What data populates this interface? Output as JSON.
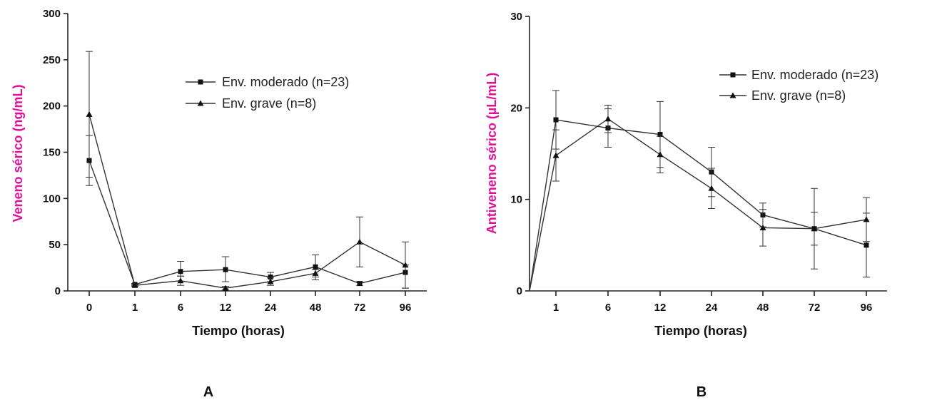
{
  "chart_data": [
    {
      "type": "line",
      "panel_label": "A",
      "xlabel": "Tiempo (horas)",
      "ylabel": "Veneno sérico (ng/mL)",
      "ylabel_color": "#e0109b",
      "categories": [
        "0",
        "1",
        "6",
        "12",
        "24",
        "48",
        "72",
        "96"
      ],
      "ylim": [
        0,
        300
      ],
      "yticks": [
        0,
        50,
        100,
        150,
        200,
        250,
        300
      ],
      "legend_position": "top-right",
      "grid": false,
      "series": [
        {
          "name": "Env. moderado (n=23)",
          "marker": "square",
          "values": [
            141,
            7,
            21,
            23,
            15,
            26,
            8,
            20
          ],
          "err_lower": [
            27,
            1,
            5,
            13,
            5,
            14,
            2,
            17
          ],
          "err_upper": [
            27,
            1,
            11,
            14,
            5,
            13,
            2,
            8
          ]
        },
        {
          "name": "Env. grave (n=8)",
          "marker": "triangle",
          "values": [
            191,
            6,
            11,
            3,
            10,
            19,
            53,
            28
          ],
          "err_lower": [
            68,
            1,
            5,
            2,
            4,
            4,
            27,
            25
          ],
          "err_upper": [
            68,
            1,
            5,
            2,
            4,
            4,
            27,
            25
          ]
        }
      ]
    },
    {
      "type": "line",
      "panel_label": "B",
      "xlabel": "Tiempo (horas)",
      "ylabel": "Antiveneno sérico (µL/mL)",
      "ylabel_color": "#e0109b",
      "categories": [
        "1",
        "6",
        "12",
        "24",
        "48",
        "72",
        "96"
      ],
      "ylim": [
        0,
        30
      ],
      "yticks": [
        0,
        10,
        20,
        30
      ],
      "origin_value": 0,
      "legend_position": "top-right",
      "grid": false,
      "series": [
        {
          "name": "Env. moderado (n=23)",
          "marker": "square",
          "values": [
            18.7,
            17.8,
            17.1,
            13,
            8.3,
            6.8,
            5
          ],
          "err_lower": [
            3.2,
            2.1,
            3.6,
            2.7,
            1.3,
            1.8,
            3.5
          ],
          "err_upper": [
            3.2,
            2.1,
            3.6,
            2.7,
            1.3,
            1.8,
            3.5
          ]
        },
        {
          "name": "Env. grave (n=8)",
          "marker": "triangle",
          "values": [
            14.8,
            18.8,
            14.9,
            11.2,
            6.9,
            6.8,
            7.8
          ],
          "err_lower": [
            2.8,
            1.5,
            2.0,
            2.2,
            2.0,
            4.4,
            2.4
          ],
          "err_upper": [
            2.8,
            1.5,
            2.0,
            2.2,
            2.0,
            4.4,
            2.4
          ]
        }
      ]
    }
  ]
}
